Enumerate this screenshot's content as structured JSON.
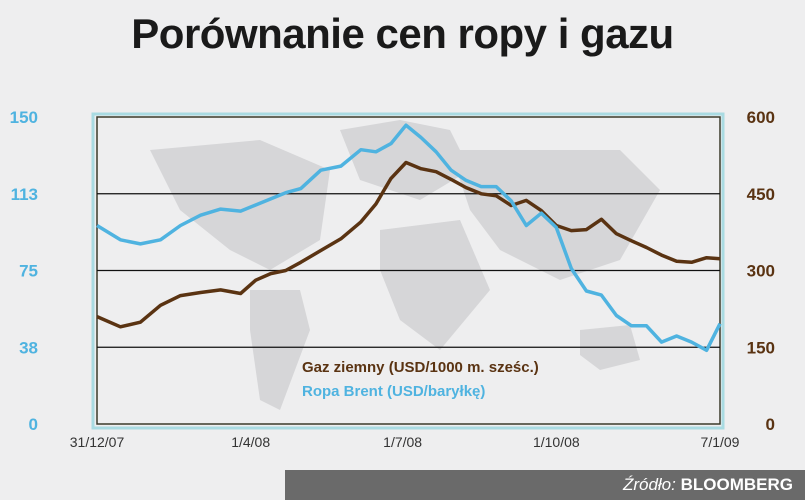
{
  "title": "Porównanie cen ropy i gazu",
  "source_label": "Źródło:",
  "source_name": "BLOOMBERG",
  "chart_data": {
    "type": "line",
    "title": "Porównanie cen ropy i gazu",
    "x_ticks": [
      "31/12/07",
      "1/4/08",
      "1/7/08",
      "1/10/08",
      "7/1/09"
    ],
    "x_range": [
      "2007-12-31",
      "2009-01-07"
    ],
    "y_left": {
      "ticks": [
        "0",
        "38",
        "75",
        "113",
        "150"
      ],
      "range": [
        0,
        150
      ],
      "color": "#4fb3e0"
    },
    "y_right": {
      "ticks": [
        "0",
        "150",
        "300",
        "450",
        "600"
      ],
      "range": [
        0,
        600
      ],
      "color": "#5a3312"
    },
    "grid": "horizontal",
    "legend_placement": "bottom-center",
    "x": [
      "2007-12-31",
      "2008-01-14",
      "2008-01-26",
      "2008-02-07",
      "2008-02-19",
      "2008-03-02",
      "2008-03-14",
      "2008-03-26",
      "2008-04-04",
      "2008-04-13",
      "2008-04-22",
      "2008-05-01",
      "2008-05-13",
      "2008-05-25",
      "2008-06-06",
      "2008-06-15",
      "2008-06-24",
      "2008-07-03",
      "2008-07-12",
      "2008-07-21",
      "2008-07-30",
      "2008-08-08",
      "2008-08-17",
      "2008-08-26",
      "2008-09-04",
      "2008-09-13",
      "2008-09-22",
      "2008-10-01",
      "2008-10-10",
      "2008-10-19",
      "2008-10-28",
      "2008-11-06",
      "2008-11-15",
      "2008-11-24",
      "2008-12-03",
      "2008-12-12",
      "2008-12-21",
      "2008-12-30",
      "2009-01-07"
    ],
    "series": [
      {
        "name": "Gaz ziemny (USD/1000 m. sześc.)",
        "axis": "right",
        "color": "#5a3312",
        "values": [
          210,
          190,
          199,
          232,
          251,
          257,
          262,
          255,
          281,
          294,
          300,
          316,
          339,
          362,
          395,
          430,
          480,
          511,
          499,
          493,
          478,
          462,
          450,
          446,
          427,
          437,
          417,
          388,
          378,
          380,
          400,
          372,
          358,
          345,
          330,
          318,
          316,
          325,
          323
        ]
      },
      {
        "name": "Ropa Brent (USD/baryłkę)",
        "axis": "left",
        "color": "#4fb3e0",
        "values": [
          97,
          90,
          88,
          90,
          97,
          102,
          105,
          104,
          107,
          110,
          113,
          115,
          124,
          126,
          134,
          133,
          137,
          146,
          140,
          133,
          124,
          119,
          116,
          116,
          109,
          97,
          103,
          96,
          76,
          65,
          63,
          53,
          48,
          48,
          40,
          43,
          40,
          36,
          49
        ]
      }
    ]
  }
}
